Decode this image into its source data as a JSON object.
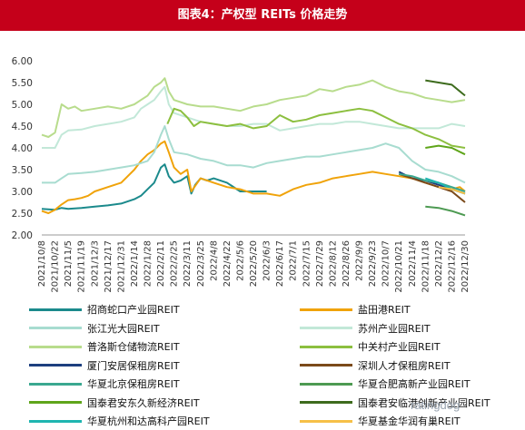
{
  "title": "图表4：产权型 REITs 价格走势",
  "watermark": "ratingdog",
  "chart_data": {
    "type": "line",
    "ylim": [
      2.0,
      6.0
    ],
    "yticks": [
      "6.00",
      "5.50",
      "5.00",
      "4.50",
      "4.00",
      "3.50",
      "3.00",
      "2.50",
      "2.00"
    ],
    "xticks": [
      "2021/10/8",
      "2021/10/22",
      "2021/11/5",
      "2021/11/19",
      "2021/12/3",
      "2021/12/17",
      "2021/12/31",
      "2022/1/14",
      "2022/1/28",
      "2022/2/11",
      "2022/2/25",
      "2022/3/11",
      "2022/3/25",
      "2022/4/8",
      "2022/4/22",
      "2022/5/6",
      "2022/5/20",
      "2022/6/3",
      "2022/6/17",
      "2022/7/1",
      "2022/7/15",
      "2022/7/29",
      "2022/8/12",
      "2022/8/26",
      "2022/9/9",
      "2022/9/23",
      "2022/10/7",
      "2022/10/21",
      "2022/11/4",
      "2022/11/18",
      "2022/12/2",
      "2022/12/16",
      "2022/12/30"
    ],
    "series": [
      {
        "name": "招商蛇口产业园REIT",
        "color": "#1b8a8c",
        "width": 2,
        "points": [
          [
            0,
            2.6
          ],
          [
            1,
            2.58
          ],
          [
            1.5,
            2.62
          ],
          [
            2,
            2.6
          ],
          [
            3,
            2.62
          ],
          [
            4,
            2.65
          ],
          [
            5,
            2.68
          ],
          [
            6,
            2.72
          ],
          [
            7,
            2.82
          ],
          [
            7.5,
            2.9
          ],
          [
            8,
            3.05
          ],
          [
            8.5,
            3.2
          ],
          [
            9,
            3.55
          ],
          [
            9.3,
            3.62
          ],
          [
            9.6,
            3.35
          ],
          [
            10,
            3.2
          ],
          [
            10.5,
            3.25
          ],
          [
            11,
            3.35
          ],
          [
            11.3,
            2.95
          ],
          [
            11.6,
            3.15
          ],
          [
            12,
            3.3
          ],
          [
            12.5,
            3.25
          ],
          [
            13,
            3.3
          ],
          [
            14,
            3.2
          ],
          [
            15,
            3.0
          ],
          [
            16,
            3.0
          ],
          [
            17,
            3.0
          ]
        ]
      },
      {
        "name": "盐田港REIT",
        "color": "#f0a30a",
        "width": 2,
        "points": [
          [
            0,
            2.55
          ],
          [
            0.5,
            2.5
          ],
          [
            1,
            2.58
          ],
          [
            1.5,
            2.7
          ],
          [
            2,
            2.8
          ],
          [
            2.5,
            2.82
          ],
          [
            3,
            2.85
          ],
          [
            3.5,
            2.9
          ],
          [
            4,
            3.0
          ],
          [
            5,
            3.1
          ],
          [
            6,
            3.2
          ],
          [
            7,
            3.5
          ],
          [
            7.5,
            3.7
          ],
          [
            8,
            3.85
          ],
          [
            8.5,
            3.95
          ],
          [
            9,
            4.1
          ],
          [
            9.3,
            4.15
          ],
          [
            9.6,
            3.9
          ],
          [
            10,
            3.55
          ],
          [
            10.5,
            3.4
          ],
          [
            11,
            3.5
          ],
          [
            11.3,
            3.0
          ],
          [
            12,
            3.3
          ],
          [
            13,
            3.2
          ],
          [
            14,
            3.1
          ],
          [
            15,
            3.05
          ],
          [
            16,
            2.95
          ],
          [
            17,
            2.95
          ],
          [
            18,
            2.9
          ],
          [
            19,
            3.05
          ],
          [
            20,
            3.15
          ],
          [
            21,
            3.2
          ],
          [
            22,
            3.3
          ],
          [
            23,
            3.35
          ],
          [
            24,
            3.4
          ],
          [
            25,
            3.45
          ],
          [
            26,
            3.4
          ],
          [
            27,
            3.35
          ],
          [
            28,
            3.3
          ],
          [
            29,
            3.2
          ],
          [
            30,
            3.1
          ],
          [
            31,
            3.05
          ],
          [
            31.6,
            3.1
          ],
          [
            32,
            3.0
          ]
        ]
      },
      {
        "name": "张江光大园REIT",
        "color": "#a8dcd0",
        "width": 2,
        "points": [
          [
            0,
            3.2
          ],
          [
            1,
            3.2
          ],
          [
            1.5,
            3.3
          ],
          [
            2,
            3.4
          ],
          [
            3,
            3.42
          ],
          [
            4,
            3.45
          ],
          [
            5,
            3.5
          ],
          [
            6,
            3.55
          ],
          [
            7,
            3.6
          ],
          [
            8,
            3.7
          ],
          [
            8.5,
            3.9
          ],
          [
            9,
            4.3
          ],
          [
            9.3,
            4.5
          ],
          [
            9.6,
            4.2
          ],
          [
            10,
            3.9
          ],
          [
            11,
            3.85
          ],
          [
            12,
            3.75
          ],
          [
            13,
            3.7
          ],
          [
            14,
            3.6
          ],
          [
            15,
            3.6
          ],
          [
            16,
            3.55
          ],
          [
            17,
            3.65
          ],
          [
            18,
            3.7
          ],
          [
            19,
            3.75
          ],
          [
            20,
            3.8
          ],
          [
            21,
            3.8
          ],
          [
            22,
            3.85
          ],
          [
            23,
            3.9
          ],
          [
            24,
            3.95
          ],
          [
            25,
            4.0
          ],
          [
            26,
            4.1
          ],
          [
            27,
            4.0
          ],
          [
            28,
            3.7
          ],
          [
            29,
            3.5
          ],
          [
            30,
            3.45
          ],
          [
            31,
            3.35
          ],
          [
            32,
            3.2
          ]
        ]
      },
      {
        "name": "苏州产业园REIT",
        "color": "#c2e8d8",
        "width": 2,
        "points": [
          [
            0,
            4.0
          ],
          [
            1,
            4.0
          ],
          [
            1.5,
            4.3
          ],
          [
            2,
            4.4
          ],
          [
            3,
            4.42
          ],
          [
            4,
            4.5
          ],
          [
            5,
            4.55
          ],
          [
            6,
            4.6
          ],
          [
            7,
            4.7
          ],
          [
            7.5,
            4.9
          ],
          [
            8,
            5.0
          ],
          [
            8.5,
            5.1
          ],
          [
            9,
            5.3
          ],
          [
            9.3,
            5.4
          ],
          [
            9.6,
            5.0
          ],
          [
            10,
            4.8
          ],
          [
            11,
            4.7
          ],
          [
            12,
            4.6
          ],
          [
            13,
            4.55
          ],
          [
            14,
            4.5
          ],
          [
            15,
            4.5
          ],
          [
            16,
            4.55
          ],
          [
            17,
            4.55
          ],
          [
            18,
            4.4
          ],
          [
            19,
            4.45
          ],
          [
            20,
            4.5
          ],
          [
            21,
            4.55
          ],
          [
            22,
            4.55
          ],
          [
            23,
            4.6
          ],
          [
            24,
            4.6
          ],
          [
            25,
            4.55
          ],
          [
            26,
            4.5
          ],
          [
            27,
            4.45
          ],
          [
            28,
            4.45
          ],
          [
            29,
            4.45
          ],
          [
            30,
            4.45
          ],
          [
            31,
            4.55
          ],
          [
            32,
            4.5
          ]
        ]
      },
      {
        "name": "普洛斯仓储物流REIT",
        "color": "#b8dc8c",
        "width": 2,
        "points": [
          [
            0,
            4.3
          ],
          [
            0.5,
            4.25
          ],
          [
            1,
            4.35
          ],
          [
            1.5,
            5.0
          ],
          [
            2,
            4.9
          ],
          [
            2.5,
            4.95
          ],
          [
            3,
            4.85
          ],
          [
            4,
            4.9
          ],
          [
            5,
            4.95
          ],
          [
            6,
            4.9
          ],
          [
            7,
            5.0
          ],
          [
            7.5,
            5.1
          ],
          [
            8,
            5.2
          ],
          [
            8.5,
            5.4
          ],
          [
            9,
            5.5
          ],
          [
            9.3,
            5.6
          ],
          [
            9.6,
            5.3
          ],
          [
            10,
            5.1
          ],
          [
            11,
            5.0
          ],
          [
            12,
            4.95
          ],
          [
            13,
            4.95
          ],
          [
            14,
            4.9
          ],
          [
            15,
            4.85
          ],
          [
            16,
            4.95
          ],
          [
            17,
            5.0
          ],
          [
            18,
            5.1
          ],
          [
            19,
            5.15
          ],
          [
            20,
            5.2
          ],
          [
            21,
            5.35
          ],
          [
            22,
            5.3
          ],
          [
            23,
            5.4
          ],
          [
            24,
            5.45
          ],
          [
            25,
            5.55
          ],
          [
            26,
            5.4
          ],
          [
            27,
            5.3
          ],
          [
            28,
            5.25
          ],
          [
            29,
            5.15
          ],
          [
            30,
            5.1
          ],
          [
            31,
            5.05
          ],
          [
            32,
            5.1
          ]
        ]
      },
      {
        "name": "中关村产业园REIT",
        "color": "#8cbf3f",
        "width": 2,
        "points": [
          [
            9.5,
            4.55
          ],
          [
            10,
            4.9
          ],
          [
            10.5,
            4.85
          ],
          [
            11,
            4.7
          ],
          [
            11.5,
            4.5
          ],
          [
            12,
            4.6
          ],
          [
            13,
            4.55
          ],
          [
            14,
            4.5
          ],
          [
            15,
            4.55
          ],
          [
            16,
            4.45
          ],
          [
            17,
            4.5
          ],
          [
            18,
            4.75
          ],
          [
            19,
            4.6
          ],
          [
            20,
            4.65
          ],
          [
            21,
            4.75
          ],
          [
            22,
            4.8
          ],
          [
            23,
            4.85
          ],
          [
            24,
            4.9
          ],
          [
            25,
            4.85
          ],
          [
            26,
            4.7
          ],
          [
            27,
            4.55
          ],
          [
            28,
            4.45
          ],
          [
            29,
            4.3
          ],
          [
            30,
            4.2
          ],
          [
            31,
            4.05
          ],
          [
            32,
            4.0
          ]
        ]
      },
      {
        "name": "厦门安居保租房REIT",
        "color": "#1d3f7f",
        "width": 2,
        "points": [
          [
            27,
            3.45
          ],
          [
            28,
            3.3
          ],
          [
            29,
            3.25
          ],
          [
            30,
            3.15
          ],
          [
            31,
            3.05
          ],
          [
            32,
            2.95
          ]
        ]
      },
      {
        "name": "深圳人才保租房REIT",
        "color": "#7b4a1a",
        "width": 2,
        "points": [
          [
            27,
            3.4
          ],
          [
            28,
            3.3
          ],
          [
            29,
            3.2
          ],
          [
            30,
            3.1
          ],
          [
            31,
            3.0
          ],
          [
            32,
            2.75
          ]
        ]
      },
      {
        "name": "华夏北京保租房REIT",
        "color": "#3aa890",
        "width": 2,
        "points": [
          [
            27,
            3.4
          ],
          [
            28,
            3.35
          ],
          [
            29,
            3.25
          ],
          [
            30,
            3.2
          ],
          [
            31,
            3.1
          ],
          [
            32,
            3.0
          ]
        ]
      },
      {
        "name": "华夏合肥高新产业园REIT",
        "color": "#4d9a52",
        "width": 2,
        "points": [
          [
            29,
            2.65
          ],
          [
            30,
            2.62
          ],
          [
            31,
            2.55
          ],
          [
            32,
            2.45
          ]
        ]
      },
      {
        "name": "国泰君安东久新经济REIT",
        "color": "#5fa51a",
        "width": 2,
        "points": [
          [
            29,
            4.0
          ],
          [
            30,
            4.05
          ],
          [
            31,
            4.0
          ],
          [
            32,
            3.85
          ]
        ]
      },
      {
        "name": "国泰君安临港创新产业园REIT",
        "color": "#3d6b1d",
        "width": 2,
        "points": [
          [
            29,
            5.55
          ],
          [
            30,
            5.5
          ],
          [
            31,
            5.45
          ],
          [
            32,
            5.2
          ]
        ]
      },
      {
        "name": "华夏杭州和达高科产园REIT",
        "color": "#1fb5b0",
        "width": 2,
        "points": [
          [
            29,
            3.3
          ],
          [
            30,
            3.2
          ],
          [
            31,
            3.05
          ],
          [
            32,
            2.95
          ]
        ]
      },
      {
        "name": "华夏基金华润有巢REIT",
        "color": "#f6c048",
        "width": 2,
        "points": [
          [
            30,
            3.1
          ],
          [
            31,
            3.05
          ],
          [
            32,
            2.95
          ]
        ]
      }
    ]
  }
}
